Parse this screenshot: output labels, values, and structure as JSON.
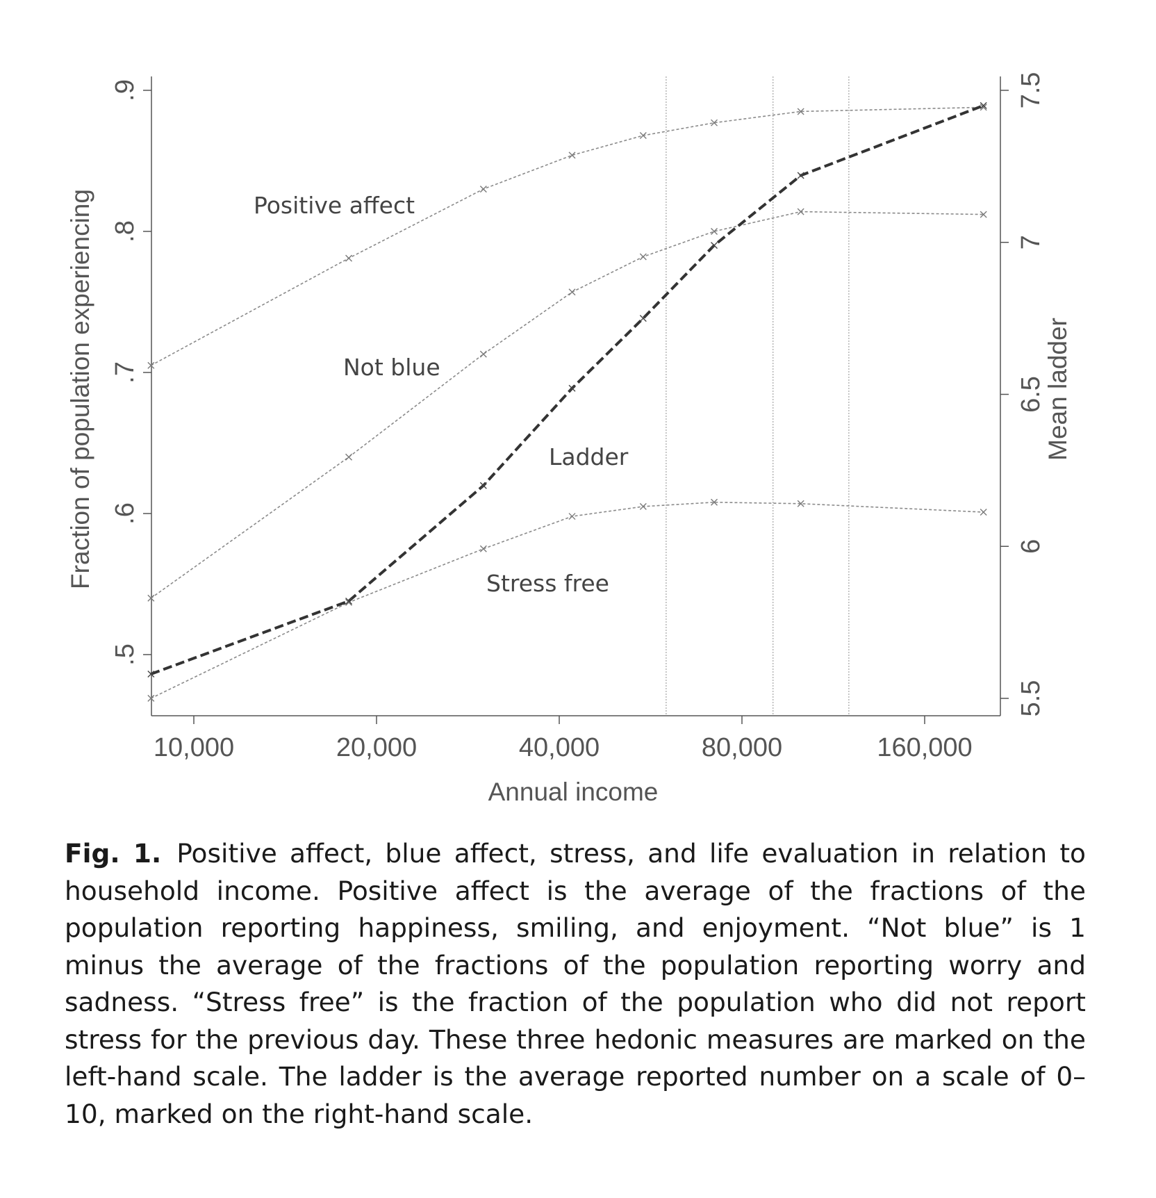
{
  "chart_data": {
    "type": "line",
    "title": "",
    "xlabel": "Annual income",
    "ylabel_left": "Fraction of population experiencing",
    "ylabel_right": "Mean ladder",
    "x_scale": "log",
    "x_ticks": [
      10000,
      20000,
      40000,
      80000,
      160000
    ],
    "x_tick_labels": [
      "10,000",
      "20,000",
      "40,000",
      "80,000",
      "160,000"
    ],
    "y_left_ticks": [
      0.5,
      0.6,
      0.7,
      0.8,
      0.9
    ],
    "y_left_tick_labels": [
      ".5",
      ".6",
      ".7",
      ".8",
      ".9"
    ],
    "y_left_lim": [
      0.46,
      0.91
    ],
    "y_right_ticks": [
      5.5,
      6,
      6.5,
      7,
      7.5
    ],
    "y_right_tick_labels": [
      "5.5",
      "6",
      "6.5",
      "7",
      "7.5"
    ],
    "y_right_lim": [
      5.45,
      7.6
    ],
    "x": [
      8500,
      18000,
      30000,
      42000,
      55000,
      72000,
      100000,
      200000
    ],
    "reference_lines_x": [
      60000,
      90000,
      120000
    ],
    "series": [
      {
        "name": "Positive affect",
        "axis": "left",
        "style": "dotted",
        "values": [
          0.705,
          0.781,
          0.83,
          0.854,
          0.868,
          0.877,
          0.885,
          0.888
        ]
      },
      {
        "name": "Not blue",
        "axis": "left",
        "style": "dotted",
        "values": [
          0.54,
          0.64,
          0.713,
          0.757,
          0.782,
          0.8,
          0.814,
          0.812
        ]
      },
      {
        "name": "Stress free",
        "axis": "left",
        "style": "dotted",
        "values": [
          0.469,
          0.537,
          0.575,
          0.598,
          0.605,
          0.608,
          0.607,
          0.601
        ]
      },
      {
        "name": "Ladder",
        "axis": "right",
        "style": "dashed",
        "values": [
          5.58,
          5.82,
          6.2,
          6.52,
          6.75,
          6.99,
          7.22,
          7.45
        ]
      }
    ],
    "annotations": [
      "Positive affect",
      "Not blue",
      "Ladder",
      "Stress free"
    ]
  },
  "caption": {
    "label": "Fig. 1.",
    "text": "Positive affect, blue affect, stress, and life evaluation in relation to household income. Positive affect is the average of the fractions of the population reporting happiness, smiling, and enjoyment. “Not blue” is 1 minus the average of the fractions of the population reporting worry and sadness. “Stress free” is the fraction of the population who did not report stress for the previous day. These three hedonic measures are marked on the left-hand scale. The ladder is the average reported number on a scale of 0–10, marked on the right-hand scale."
  }
}
